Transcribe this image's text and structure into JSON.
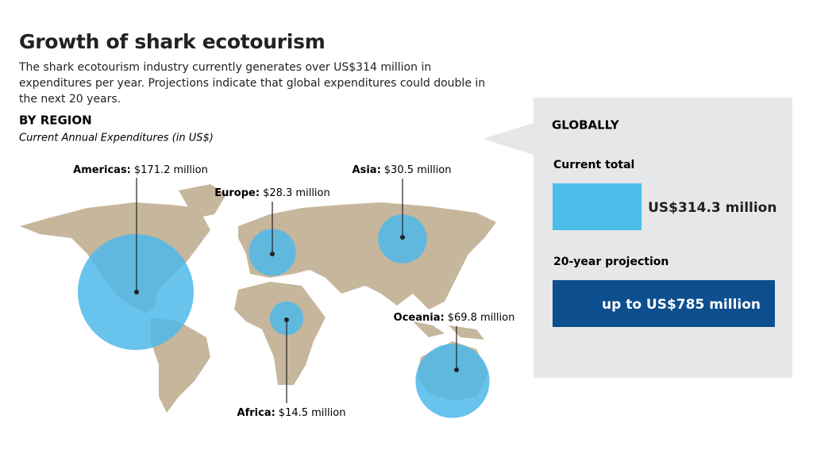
{
  "header": {
    "title": "Growth of shark ecotourism",
    "subtitle": "The shark ecotourism industry currently generates over US$314 million in expenditures per year. Projections indicate that global expenditures could double in the next 20 years."
  },
  "chart_data": [
    {
      "type": "bubble_map",
      "title": "BY REGION",
      "subtitle": "Current Annual Expenditures (in US$)",
      "categories": [
        "Americas:",
        "Europe:",
        "Asia:",
        "Africa:",
        "Oceania:"
      ],
      "values": [
        171.2,
        28.3,
        30.5,
        14.5,
        69.8
      ],
      "value_labels": [
        "$171.2 million",
        "$28.3 million",
        "$30.5 million",
        "$14.5 million",
        "$69.8 million"
      ],
      "color": "#4db8ea"
    },
    {
      "type": "hbar",
      "title": "GLOBALLY",
      "categories": [
        "Current total",
        "20-year projection"
      ],
      "values": [
        314.3,
        785
      ],
      "value_labels": [
        "US$314.3 million",
        "up to US$785 million"
      ],
      "colors": [
        "#4cbde9",
        "#0d4e8e"
      ]
    }
  ]
}
